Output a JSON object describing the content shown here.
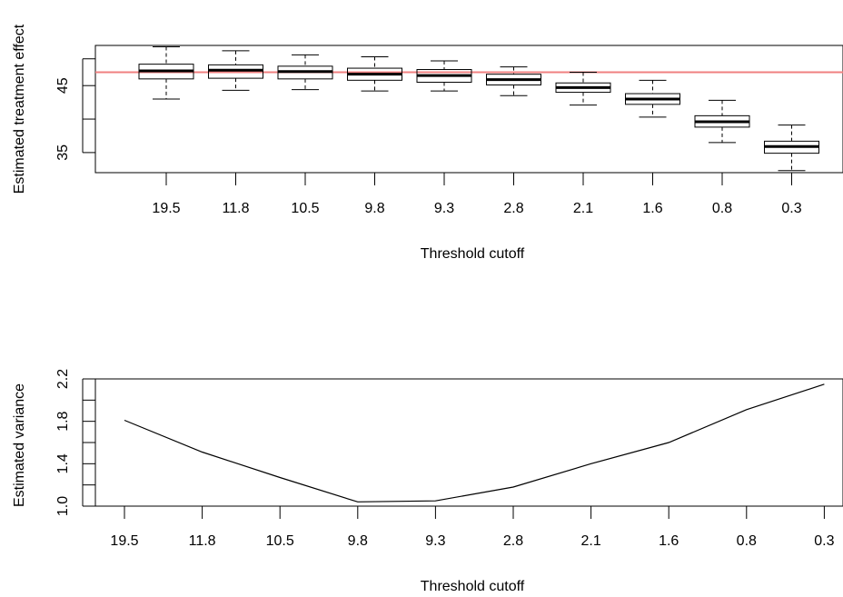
{
  "chart_data": [
    {
      "type": "box",
      "xlabel": "Threshold cutoff",
      "ylabel": "Estimated treatment effect",
      "categories": [
        "19.5",
        "11.8",
        "10.5",
        "9.8",
        "9.3",
        "2.8",
        "2.1",
        "1.6",
        "0.8",
        "0.3"
      ],
      "ylim": [
        32,
        51
      ],
      "yticks": [
        35,
        45
      ],
      "reference_line": {
        "y": 47.0,
        "color": "#f08080"
      },
      "boxes": [
        {
          "min": 43.0,
          "q1": 46.0,
          "median": 47.2,
          "q3": 48.2,
          "max": 50.8
        },
        {
          "min": 44.3,
          "q1": 46.1,
          "median": 47.3,
          "q3": 48.1,
          "max": 50.2
        },
        {
          "min": 44.4,
          "q1": 46.0,
          "median": 47.1,
          "q3": 47.9,
          "max": 49.6
        },
        {
          "min": 44.2,
          "q1": 45.8,
          "median": 46.7,
          "q3": 47.6,
          "max": 49.3
        },
        {
          "min": 44.2,
          "q1": 45.5,
          "median": 46.5,
          "q3": 47.4,
          "max": 48.7
        },
        {
          "min": 43.5,
          "q1": 45.1,
          "median": 45.9,
          "q3": 46.7,
          "max": 47.8
        },
        {
          "min": 42.1,
          "q1": 44.0,
          "median": 44.7,
          "q3": 45.4,
          "max": 47.0
        },
        {
          "min": 40.3,
          "q1": 42.2,
          "median": 43.0,
          "q3": 43.8,
          "max": 45.8
        },
        {
          "min": 36.5,
          "q1": 38.8,
          "median": 39.6,
          "q3": 40.5,
          "max": 42.8
        },
        {
          "min": 32.3,
          "q1": 34.9,
          "median": 35.9,
          "q3": 36.7,
          "max": 39.1
        }
      ],
      "box_color": "#000000"
    },
    {
      "type": "line",
      "xlabel": "Threshold cutoff",
      "ylabel": "Estimated variance",
      "categories": [
        "19.5",
        "11.8",
        "10.5",
        "9.8",
        "9.3",
        "2.8",
        "2.1",
        "1.6",
        "0.8",
        "0.3"
      ],
      "ylim": [
        1.0,
        2.2
      ],
      "yticks": [
        "1.0",
        "1.4",
        "1.8",
        "2.2"
      ],
      "series": [
        {
          "values": [
            1.81,
            1.51,
            1.27,
            1.04,
            1.05,
            1.18,
            1.4,
            1.6,
            1.91,
            2.15
          ],
          "color": "#000000"
        }
      ]
    }
  ]
}
